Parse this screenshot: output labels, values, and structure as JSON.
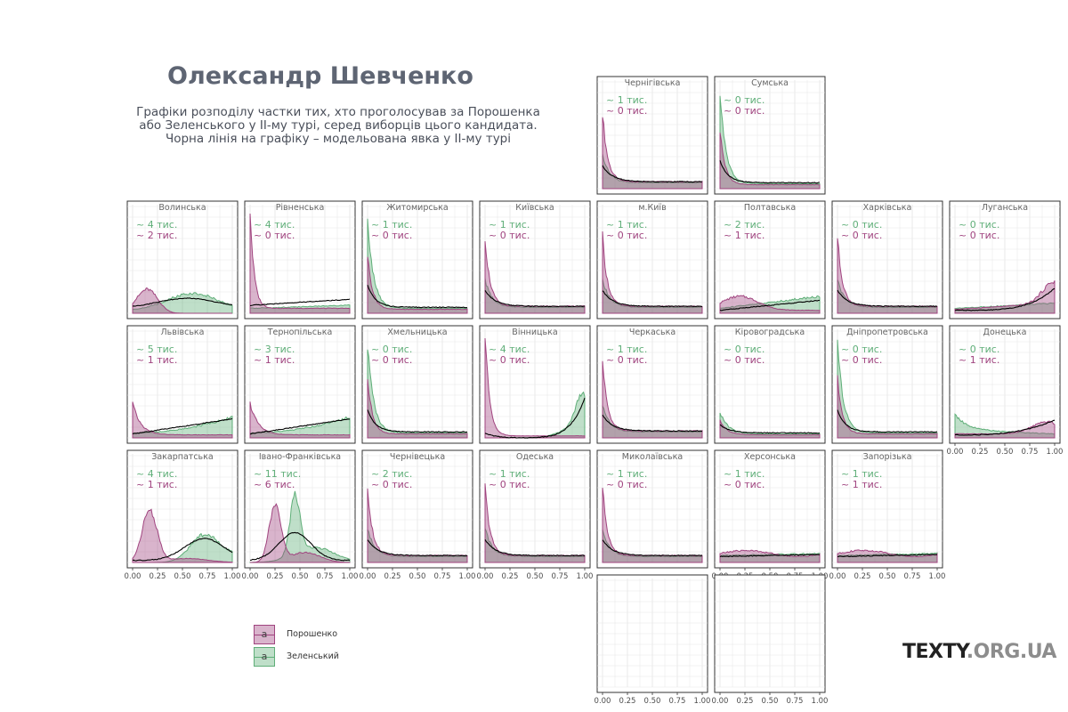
{
  "title": "Олександр Шевченко",
  "subtitle": [
    "Графіки розподілу частки тих, хто проголосував за Порошенка",
    "або Зеленського у ІІ-му турі, серед виборців цього кандидата.",
    "Чорна лінія на графіку – модельована явка у ІІ-му турі"
  ],
  "brand": {
    "part1": "TEXTY",
    "part2": ".ORG.UA"
  },
  "colors": {
    "poroshenko": "#a0447f",
    "zelensky": "#5fae78",
    "turnout": "#000000"
  },
  "legend": [
    {
      "name": "Порошенко",
      "color": "#a0447f",
      "glyph": "a"
    },
    {
      "name": "Зеленський",
      "color": "#5fae78",
      "glyph": "a"
    }
  ],
  "count_unit": "тис.",
  "count_prefix": "~",
  "chart_data": {
    "type": "area",
    "xlim": [
      0,
      1
    ],
    "xticks": [
      "0.00",
      "0.25",
      "0.50",
      "0.75",
      "1.00"
    ],
    "grid": true,
    "panels": [
      {
        "region": "Чернігівська",
        "row": 0,
        "col": 4,
        "zel_k": 1,
        "por_k": 0,
        "pattern": "left",
        "xaxis": false
      },
      {
        "region": "Сумська",
        "row": 0,
        "col": 5,
        "zel_k": 0,
        "por_k": 0,
        "pattern": "left_g",
        "xaxis": false
      },
      {
        "region": "Волинська",
        "row": 1,
        "col": 0,
        "zel_k": 4,
        "por_k": 2,
        "pattern": "mid",
        "xaxis": false
      },
      {
        "region": "Рівненська",
        "row": 1,
        "col": 1,
        "zel_k": 4,
        "por_k": 0,
        "pattern": "left_m",
        "xaxis": false
      },
      {
        "region": "Житомирська",
        "row": 1,
        "col": 2,
        "zel_k": 1,
        "por_k": 0,
        "pattern": "left_g",
        "xaxis": false
      },
      {
        "region": "Київська",
        "row": 1,
        "col": 3,
        "zel_k": 1,
        "por_k": 0,
        "pattern": "left",
        "xaxis": false
      },
      {
        "region": "м.Київ",
        "row": 1,
        "col": 4,
        "zel_k": 1,
        "por_k": 0,
        "pattern": "left",
        "xaxis": false
      },
      {
        "region": "Полтавська",
        "row": 1,
        "col": 5,
        "zel_k": 2,
        "por_k": 1,
        "pattern": "flat",
        "xaxis": false
      },
      {
        "region": "Харківська",
        "row": 1,
        "col": 6,
        "zel_k": 0,
        "por_k": 0,
        "pattern": "left",
        "xaxis": false
      },
      {
        "region": "Луганська",
        "row": 1,
        "col": 7,
        "zel_k": 0,
        "por_k": 0,
        "pattern": "right",
        "xaxis": false
      },
      {
        "region": "Львівська",
        "row": 2,
        "col": 0,
        "zel_k": 5,
        "por_k": 1,
        "pattern": "left_right",
        "xaxis": false
      },
      {
        "region": "Тернопільська",
        "row": 2,
        "col": 1,
        "zel_k": 3,
        "por_k": 1,
        "pattern": "left_right",
        "xaxis": false
      },
      {
        "region": "Хмельницька",
        "row": 2,
        "col": 2,
        "zel_k": 0,
        "por_k": 0,
        "pattern": "left_g",
        "xaxis": false
      },
      {
        "region": "Вінницька",
        "row": 2,
        "col": 3,
        "zel_k": 4,
        "por_k": 0,
        "pattern": "u",
        "xaxis": false
      },
      {
        "region": "Черкаська",
        "row": 2,
        "col": 4,
        "zel_k": 1,
        "por_k": 0,
        "pattern": "left",
        "xaxis": false
      },
      {
        "region": "Кіровоградська",
        "row": 2,
        "col": 5,
        "zel_k": 0,
        "por_k": 0,
        "pattern": "left_s",
        "xaxis": false
      },
      {
        "region": "Дніпропетровська",
        "row": 2,
        "col": 6,
        "zel_k": 0,
        "por_k": 0,
        "pattern": "left_g",
        "xaxis": false
      },
      {
        "region": "Донецька",
        "row": 2,
        "col": 7,
        "zel_k": 0,
        "por_k": 1,
        "pattern": "right_s",
        "xaxis": true
      },
      {
        "region": "Закарпатська",
        "row": 3,
        "col": 0,
        "zel_k": 4,
        "por_k": 1,
        "pattern": "bimodal",
        "xaxis": true
      },
      {
        "region": "Івано-Франківська",
        "row": 3,
        "col": 1,
        "zel_k": 11,
        "por_k": 6,
        "pattern": "bimodal2",
        "xaxis": true
      },
      {
        "region": "Чернівецька",
        "row": 3,
        "col": 2,
        "zel_k": 2,
        "por_k": 0,
        "pattern": "left",
        "xaxis": true
      },
      {
        "region": "Одеська",
        "row": 3,
        "col": 3,
        "zel_k": 1,
        "por_k": 0,
        "pattern": "left",
        "xaxis": true
      },
      {
        "region": "Миколаївська",
        "row": 3,
        "col": 4,
        "zel_k": 1,
        "por_k": 0,
        "pattern": "left",
        "xaxis": false
      },
      {
        "region": "Херсонська",
        "row": 3,
        "col": 5,
        "zel_k": 1,
        "por_k": 0,
        "pattern": "flat_low",
        "xaxis": true
      },
      {
        "region": "Запорізька",
        "row": 3,
        "col": 6,
        "zel_k": 1,
        "por_k": 1,
        "pattern": "flat_low",
        "xaxis": true
      },
      {
        "region": "",
        "row": 4,
        "col": 4,
        "zel_k": null,
        "por_k": null,
        "pattern": "empty",
        "xaxis": true
      },
      {
        "region": "",
        "row": 4,
        "col": 5,
        "zel_k": null,
        "por_k": null,
        "pattern": "empty",
        "xaxis": true
      }
    ]
  }
}
